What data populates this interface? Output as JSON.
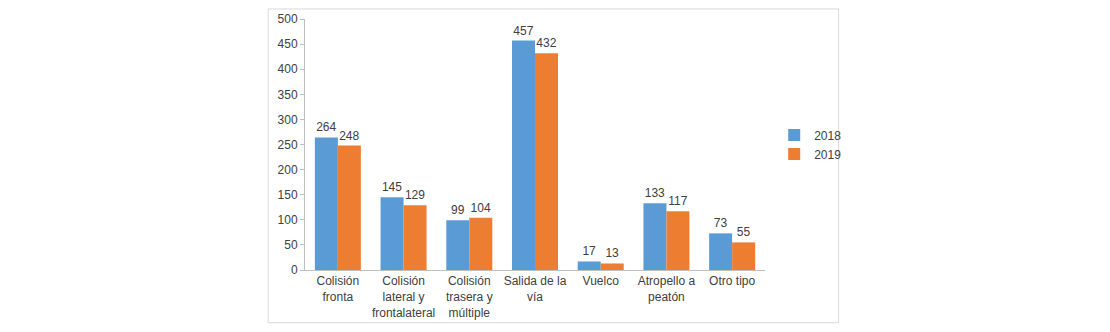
{
  "chart_data": {
    "type": "bar",
    "categories": [
      "Colisión fronta",
      "Colisión lateral y frontalateral",
      "Colisión trasera y múltiple",
      "Salida de la vía",
      "Vuelco",
      "Atropello a peatón",
      "Otro tipo"
    ],
    "series": [
      {
        "name": "2018",
        "color": "#5b9bd5",
        "values": [
          264,
          145,
          99,
          457,
          17,
          133,
          73
        ]
      },
      {
        "name": "2019",
        "color": "#ed7d31",
        "values": [
          248,
          129,
          104,
          432,
          13,
          117,
          55
        ]
      }
    ],
    "ylim": [
      0,
      500
    ],
    "yticks": [
      0,
      50,
      100,
      150,
      200,
      250,
      300,
      350,
      400,
      450,
      500
    ],
    "grid": false,
    "legend": "right",
    "data_labels": true
  }
}
